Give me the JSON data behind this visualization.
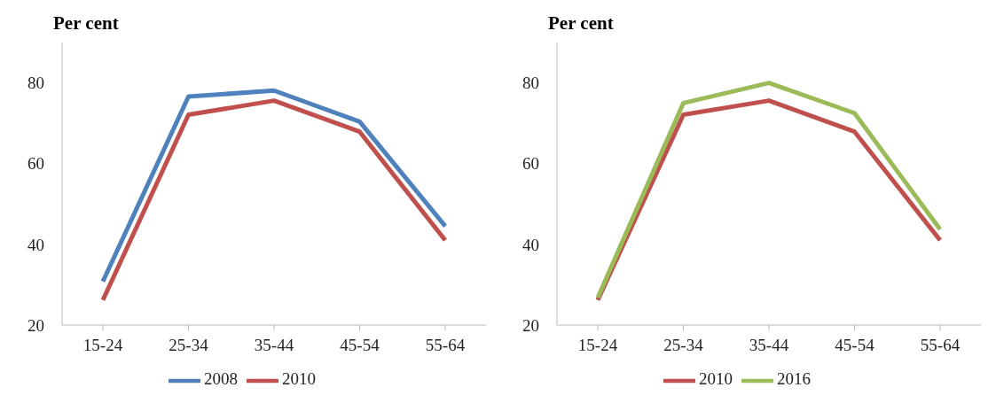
{
  "chart_data": [
    {
      "type": "line",
      "ylabel": "Per cent",
      "categories": [
        "15-24",
        "25-34",
        "35-44",
        "45-54",
        "55-64"
      ],
      "series": [
        {
          "name": "2008",
          "color": "#4f81bd",
          "values": [
            30.8,
            76.6,
            78.1,
            70.4,
            44.5
          ]
        },
        {
          "name": "2010",
          "color": "#c0504d",
          "values": [
            26.2,
            72.1,
            75.6,
            67.9,
            41
          ]
        }
      ],
      "ylim": [
        20,
        90
      ],
      "yticks": [
        20,
        40,
        60,
        80
      ],
      "grid": false,
      "legend": "bottom",
      "marker": "none",
      "line_style": "solid"
    },
    {
      "type": "line",
      "ylabel": "Per cent",
      "categories": [
        "15-24",
        "25-34",
        "35-44",
        "45-54",
        "55-64"
      ],
      "series": [
        {
          "name": "2010",
          "color": "#c0504d",
          "values": [
            26.2,
            72.1,
            75.6,
            67.9,
            41
          ]
        },
        {
          "name": "2016",
          "color": "#9bbb59",
          "values": [
            26.8,
            75,
            80,
            72.5,
            43.7
          ]
        }
      ],
      "ylim": [
        20,
        90
      ],
      "yticks": [
        20,
        40,
        60,
        80
      ],
      "grid": false,
      "legend": "bottom",
      "marker": "none",
      "line_style": "solid"
    }
  ]
}
